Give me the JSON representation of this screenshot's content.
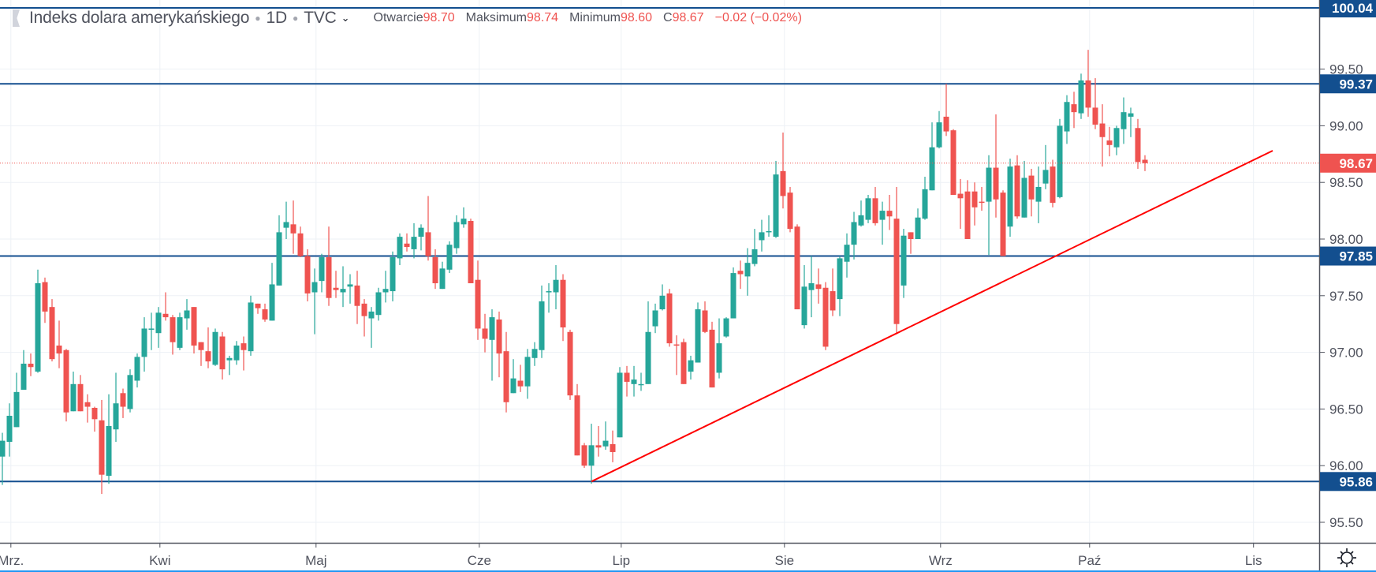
{
  "header": {
    "symbol_title": "Indeks dolara amerykańskiego",
    "interval": "1D",
    "exchange": "TVC",
    "open_label": "Otwarcie",
    "open_value": "98.70",
    "high_label": "Maksimum",
    "high_value": "98.74",
    "low_label": "Minimum",
    "low_value": "98.60",
    "close_label": "C",
    "close_value": "98.67",
    "change": "−0.02 (−0.02%)"
  },
  "colors": {
    "up": "#26a69a",
    "down": "#ef5350",
    "hline": "#134f8f",
    "trend": "#ff0000",
    "grid": "#edf1f6",
    "text": "#50535e"
  },
  "chart_data": {
    "type": "candlestick",
    "title": "Indeks dolara amerykańskiego · 1D · TVC",
    "ylim": [
      95.32,
      100.1
    ],
    "y_ticks": [
      "95.50",
      "96.00",
      "96.50",
      "97.00",
      "97.50",
      "98.00",
      "98.50",
      "99.00",
      "99.50"
    ],
    "x_ticks": [
      {
        "label": "Mrz.",
        "bar": 1.2
      },
      {
        "label": "Kwi",
        "bar": 22.2
      },
      {
        "label": "Maj",
        "bar": 44.2
      },
      {
        "label": "Cze",
        "bar": 67.2
      },
      {
        "label": "Lip",
        "bar": 87.2
      },
      {
        "label": "Sie",
        "bar": 110.2
      },
      {
        "label": "Wrz",
        "bar": 132.2
      },
      {
        "label": "Paź",
        "bar": 153.2
      },
      {
        "label": "Lis",
        "bar": 176.3
      }
    ],
    "horizontal_lines": [
      "100.04",
      "99.37",
      "97.85",
      "95.86"
    ],
    "last_price": "98.67",
    "trendline": {
      "from": {
        "bar": 83,
        "price": 95.86
      },
      "to": {
        "bar": 179,
        "price": 98.78
      }
    },
    "grid": true,
    "candles_ohlc": [
      [
        96.08,
        96.29,
        95.83,
        96.22
      ],
      [
        96.21,
        96.55,
        96.08,
        96.44
      ],
      [
        96.34,
        96.82,
        96.34,
        96.65
      ],
      [
        96.67,
        97.02,
        96.67,
        96.9
      ],
      [
        96.9,
        96.99,
        96.79,
        96.87
      ],
      [
        96.83,
        97.73,
        96.82,
        97.61
      ],
      [
        97.62,
        97.66,
        97.26,
        97.36
      ],
      [
        97.4,
        97.47,
        96.92,
        96.94
      ],
      [
        97.06,
        97.28,
        96.86,
        96.99
      ],
      [
        97.02,
        97.03,
        96.39,
        96.47
      ],
      [
        96.48,
        96.83,
        96.48,
        96.72
      ],
      [
        96.72,
        96.8,
        96.48,
        96.48
      ],
      [
        96.56,
        96.63,
        96.38,
        96.52
      ],
      [
        96.51,
        96.52,
        96.3,
        96.41
      ],
      [
        96.4,
        96.58,
        95.75,
        95.92
      ],
      [
        95.91,
        96.63,
        95.84,
        96.35
      ],
      [
        96.32,
        96.82,
        96.21,
        96.55
      ],
      [
        96.64,
        96.68,
        96.42,
        96.52
      ],
      [
        96.5,
        96.85,
        96.47,
        96.8
      ],
      [
        96.75,
        96.99,
        96.69,
        96.96
      ],
      [
        96.96,
        97.31,
        96.83,
        97.21
      ],
      [
        97.2,
        97.35,
        97.02,
        97.21
      ],
      [
        97.17,
        97.4,
        97.04,
        97.35
      ],
      [
        97.34,
        97.53,
        97.28,
        97.31
      ],
      [
        97.31,
        97.33,
        96.98,
        97.09
      ],
      [
        97.04,
        97.35,
        97.02,
        97.31
      ],
      [
        97.3,
        97.47,
        97.2,
        97.37
      ],
      [
        97.4,
        97.4,
        96.99,
        97.06
      ],
      [
        97.09,
        97.09,
        96.88,
        97.02
      ],
      [
        97.01,
        97.22,
        96.86,
        96.92
      ],
      [
        96.89,
        97.21,
        96.88,
        97.18
      ],
      [
        97.14,
        97.18,
        96.76,
        96.85
      ],
      [
        96.93,
        96.97,
        96.8,
        96.95
      ],
      [
        96.93,
        97.1,
        96.89,
        97.06
      ],
      [
        97.08,
        97.14,
        96.84,
        97.02
      ],
      [
        97.01,
        97.5,
        96.97,
        97.44
      ],
      [
        97.43,
        97.43,
        97.34,
        97.39
      ],
      [
        97.38,
        97.43,
        97.27,
        97.29
      ],
      [
        97.28,
        97.79,
        97.28,
        97.6
      ],
      [
        97.59,
        98.21,
        97.59,
        98.06
      ],
      [
        98.1,
        98.33,
        98.0,
        98.15
      ],
      [
        98.13,
        98.34,
        97.87,
        98.05
      ],
      [
        98.05,
        98.11,
        97.84,
        97.85
      ],
      [
        97.85,
        97.91,
        97.45,
        97.52
      ],
      [
        97.53,
        97.74,
        97.16,
        97.62
      ],
      [
        97.63,
        97.87,
        97.53,
        97.84
      ],
      [
        97.84,
        98.11,
        97.41,
        97.48
      ],
      [
        97.57,
        97.72,
        97.48,
        97.55
      ],
      [
        97.53,
        97.76,
        97.4,
        97.56
      ],
      [
        97.58,
        97.69,
        97.43,
        97.6
      ],
      [
        97.59,
        97.72,
        97.25,
        97.41
      ],
      [
        97.43,
        97.47,
        97.14,
        97.32
      ],
      [
        97.3,
        97.4,
        97.04,
        97.36
      ],
      [
        97.33,
        97.57,
        97.28,
        97.53
      ],
      [
        97.53,
        97.72,
        97.44,
        97.56
      ],
      [
        97.54,
        97.89,
        97.45,
        97.84
      ],
      [
        97.83,
        98.05,
        97.77,
        98.02
      ],
      [
        97.96,
        98.05,
        97.89,
        97.93
      ],
      [
        97.91,
        98.14,
        97.83,
        98.02
      ],
      [
        98.02,
        98.13,
        97.9,
        98.1
      ],
      [
        98.06,
        98.38,
        97.81,
        97.85
      ],
      [
        97.84,
        97.91,
        97.56,
        97.61
      ],
      [
        97.56,
        97.8,
        97.56,
        97.74
      ],
      [
        97.73,
        97.98,
        97.7,
        97.95
      ],
      [
        97.92,
        98.21,
        97.87,
        98.15
      ],
      [
        98.13,
        98.28,
        98.1,
        98.18
      ],
      [
        98.16,
        98.18,
        97.61,
        97.61
      ],
      [
        97.64,
        97.81,
        97.11,
        97.21
      ],
      [
        97.21,
        97.34,
        97.0,
        97.12
      ],
      [
        97.11,
        97.38,
        96.75,
        97.31
      ],
      [
        97.29,
        97.36,
        96.78,
        96.99
      ],
      [
        97.01,
        97.18,
        96.47,
        96.56
      ],
      [
        96.64,
        96.94,
        96.64,
        96.77
      ],
      [
        96.75,
        96.89,
        96.65,
        96.7
      ],
      [
        96.7,
        97.03,
        96.59,
        96.96
      ],
      [
        96.95,
        97.09,
        96.88,
        97.03
      ],
      [
        97.02,
        97.59,
        96.95,
        97.45
      ],
      [
        97.53,
        97.61,
        97.35,
        97.54
      ],
      [
        97.53,
        97.77,
        97.38,
        97.64
      ],
      [
        97.64,
        97.69,
        97.1,
        97.22
      ],
      [
        97.18,
        97.2,
        96.58,
        96.62
      ],
      [
        96.62,
        96.72,
        96.09,
        96.09
      ],
      [
        96.18,
        96.2,
        95.98,
        96.0
      ],
      [
        96.0,
        96.37,
        95.84,
        96.18
      ],
      [
        96.18,
        96.35,
        96.08,
        96.16
      ],
      [
        96.17,
        96.39,
        96.14,
        96.22
      ],
      [
        96.19,
        96.31,
        96.03,
        96.12
      ],
      [
        96.25,
        96.87,
        96.25,
        96.82
      ],
      [
        96.82,
        96.88,
        96.61,
        96.74
      ],
      [
        96.72,
        96.88,
        96.61,
        96.76
      ],
      [
        96.71,
        96.82,
        96.66,
        96.72
      ],
      [
        96.72,
        97.45,
        96.72,
        97.18
      ],
      [
        97.23,
        97.43,
        97.17,
        97.37
      ],
      [
        97.38,
        97.6,
        97.37,
        97.5
      ],
      [
        97.52,
        97.56,
        97.05,
        97.08
      ],
      [
        97.07,
        97.15,
        96.8,
        97.06
      ],
      [
        97.09,
        97.12,
        96.72,
        96.72
      ],
      [
        96.83,
        96.97,
        96.76,
        96.93
      ],
      [
        96.91,
        97.44,
        96.91,
        97.38
      ],
      [
        97.37,
        97.45,
        97.17,
        97.18
      ],
      [
        97.2,
        97.27,
        96.69,
        96.69
      ],
      [
        96.82,
        97.3,
        96.77,
        97.08
      ],
      [
        97.14,
        97.31,
        97.13,
        97.3
      ],
      [
        97.3,
        97.75,
        97.3,
        97.7
      ],
      [
        97.72,
        97.81,
        97.56,
        97.69
      ],
      [
        97.67,
        97.92,
        97.5,
        97.79
      ],
      [
        97.78,
        98.09,
        97.76,
        97.91
      ],
      [
        97.99,
        98.17,
        97.89,
        98.06
      ],
      [
        98.06,
        98.21,
        98.02,
        98.07
      ],
      [
        98.02,
        98.69,
        98.01,
        98.57
      ],
      [
        98.6,
        98.94,
        98.27,
        98.38
      ],
      [
        98.41,
        98.46,
        98.06,
        98.09
      ],
      [
        98.11,
        98.13,
        97.38,
        97.38
      ],
      [
        97.24,
        97.77,
        97.21,
        97.58
      ],
      [
        97.55,
        97.85,
        97.31,
        97.61
      ],
      [
        97.6,
        97.74,
        97.43,
        97.56
      ],
      [
        97.57,
        97.62,
        97.02,
        97.05
      ],
      [
        97.54,
        97.74,
        97.32,
        97.37
      ],
      [
        97.47,
        97.85,
        97.32,
        97.83
      ],
      [
        97.8,
        98.05,
        97.66,
        97.95
      ],
      [
        97.95,
        98.24,
        97.82,
        98.15
      ],
      [
        98.12,
        98.34,
        98.11,
        98.21
      ],
      [
        98.17,
        98.39,
        98.14,
        98.36
      ],
      [
        98.36,
        98.46,
        98.12,
        98.14
      ],
      [
        98.17,
        98.33,
        97.95,
        98.25
      ],
      [
        98.25,
        98.39,
        98.08,
        98.2
      ],
      [
        98.18,
        98.46,
        97.16,
        97.25
      ],
      [
        97.59,
        98.09,
        97.48,
        98.03
      ],
      [
        98.06,
        98.06,
        97.87,
        98.0
      ],
      [
        98.0,
        98.27,
        98.0,
        98.19
      ],
      [
        98.18,
        98.55,
        98.17,
        98.44
      ],
      [
        98.43,
        99.03,
        98.43,
        98.81
      ],
      [
        98.81,
        99.13,
        98.8,
        99.03
      ],
      [
        99.08,
        99.37,
        98.91,
        98.95
      ],
      [
        98.96,
        98.97,
        98.39,
        98.39
      ],
      [
        98.4,
        98.53,
        98.09,
        98.36
      ],
      [
        98.42,
        98.52,
        98.0,
        98.0
      ],
      [
        98.42,
        98.5,
        98.12,
        98.28
      ],
      [
        98.33,
        98.46,
        98.25,
        98.32
      ],
      [
        98.33,
        98.74,
        97.86,
        98.63
      ],
      [
        98.63,
        99.1,
        98.19,
        98.35
      ],
      [
        98.41,
        98.43,
        97.85,
        97.85
      ],
      [
        98.11,
        98.71,
        98.02,
        98.64
      ],
      [
        98.65,
        98.74,
        98.18,
        98.2
      ],
      [
        98.19,
        98.69,
        98.19,
        98.54
      ],
      [
        98.56,
        98.62,
        98.2,
        98.35
      ],
      [
        98.33,
        98.64,
        98.14,
        98.46
      ],
      [
        98.49,
        98.83,
        98.44,
        98.61
      ],
      [
        98.64,
        98.7,
        98.28,
        98.32
      ],
      [
        98.37,
        99.06,
        98.36,
        99.0
      ],
      [
        98.95,
        99.27,
        98.84,
        99.21
      ],
      [
        99.19,
        99.3,
        98.98,
        99.12
      ],
      [
        99.11,
        99.46,
        99.06,
        99.4
      ],
      [
        99.4,
        99.67,
        99.08,
        99.16
      ],
      [
        99.16,
        99.42,
        98.97,
        99.01
      ],
      [
        99.02,
        99.19,
        98.64,
        98.9
      ],
      [
        98.87,
        98.99,
        98.73,
        98.83
      ],
      [
        98.81,
        99.0,
        98.74,
        98.98
      ],
      [
        98.97,
        99.25,
        98.84,
        99.12
      ],
      [
        99.08,
        99.16,
        98.9,
        99.11
      ],
      [
        98.98,
        99.06,
        98.62,
        98.68
      ],
      [
        98.7,
        98.74,
        98.6,
        98.67
      ]
    ]
  }
}
